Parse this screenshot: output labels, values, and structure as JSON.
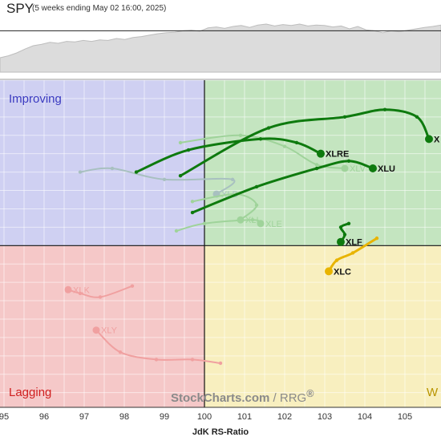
{
  "header": {
    "symbol": "SPY",
    "subtitle": "(5 weeks ending May 02 16:00, 2025)"
  },
  "watermark": {
    "brand": "StockCharts.com",
    "suffix": "/ RRG",
    "mark": "®"
  },
  "colors": {
    "improving_bg": "#cfd0f2",
    "leading_bg": "#c4e5c0",
    "lagging_bg": "#f5c8c8",
    "weakening_bg": "#f8efbf",
    "improving_text": "#3a3ac0",
    "lagging_text": "#d02020",
    "weakening_text": "#b89400",
    "green_tail": "#0e7a0e",
    "yellow_tail": "#e8b400",
    "faded_green": "#9fd39a",
    "faded_blue": "#a8c0c0",
    "faded_red": "#f0a0a0"
  },
  "chart_data": {
    "type": "scatter",
    "title": "SPY",
    "xlabel": "JdK RS-Ratio",
    "ylabel": "",
    "x_ticks": [
      "95",
      "96",
      "97",
      "98",
      "99",
      "100",
      "101",
      "102",
      "103",
      "104",
      "105"
    ],
    "xlim": [
      94.9,
      105.9
    ],
    "ylim": [
      95.6,
      104.5
    ],
    "center": [
      100,
      100
    ],
    "grid": true,
    "quadrants": {
      "top_left": "Improving",
      "bottom_left": "Lagging",
      "bottom_right": "Weakening",
      "bottom_right_shown": "W"
    },
    "benchmark_line": [
      0.3,
      0.34,
      0.4,
      0.48,
      0.55,
      0.58,
      0.62,
      0.6,
      0.64,
      0.63,
      0.66,
      0.64,
      0.67,
      0.66,
      0.7,
      0.68,
      0.72,
      0.74,
      0.77,
      0.8,
      0.82,
      0.83,
      0.86,
      0.87,
      0.85,
      0.92,
      0.94,
      0.91,
      0.95,
      0.97,
      0.93,
      0.98,
      1.0,
      0.96,
      0.99,
      0.97,
      1.0,
      0.96,
      0.98,
      0.97,
      0.94,
      0.96,
      0.9,
      0.95,
      0.88,
      0.86,
      0.82,
      0.86,
      0.84,
      0.87,
      0.9,
      0.93,
      0.95,
      0.98
    ],
    "benchmark_reference": 0.86,
    "series": [
      {
        "name": "X",
        "style": "bold",
        "color": "green",
        "points": [
          [
            99.4,
            101.9
          ],
          [
            101.6,
            103.2
          ],
          [
            103.5,
            103.5
          ],
          [
            104.5,
            103.7
          ],
          [
            105.3,
            103.5
          ],
          [
            105.6,
            102.9
          ]
        ]
      },
      {
        "name": "XLRE",
        "style": "bold",
        "color": "green",
        "points": [
          [
            98.3,
            102.0
          ],
          [
            99.6,
            102.6
          ],
          [
            101.4,
            102.9
          ],
          [
            102.3,
            102.8
          ],
          [
            102.9,
            102.5
          ]
        ]
      },
      {
        "name": "XLU",
        "style": "bold",
        "color": "green",
        "points": [
          [
            99.7,
            100.9
          ],
          [
            101.3,
            101.6
          ],
          [
            102.8,
            102.1
          ],
          [
            103.6,
            102.3
          ],
          [
            104.2,
            102.1
          ]
        ]
      },
      {
        "name": "XLF",
        "style": "bold",
        "color": "green",
        "points": [
          [
            103.6,
            100.6
          ],
          [
            103.4,
            100.5
          ],
          [
            103.5,
            100.3
          ],
          [
            103.4,
            100.1
          ]
        ]
      },
      {
        "name": "XLC",
        "style": "bold",
        "color": "yellow",
        "points": [
          [
            104.3,
            100.2
          ],
          [
            103.7,
            99.8
          ],
          [
            103.3,
            99.6
          ],
          [
            103.1,
            99.3
          ]
        ]
      },
      {
        "name": "XLV",
        "style": "faded",
        "color": "green",
        "points": [
          [
            99.4,
            102.8
          ],
          [
            100.9,
            103.0
          ],
          [
            102.0,
            102.7
          ],
          [
            102.8,
            102.2
          ],
          [
            103.5,
            102.1
          ]
        ]
      },
      {
        "name": "XLB",
        "style": "faded",
        "color": "blue",
        "points": [
          [
            96.9,
            102.0
          ],
          [
            97.7,
            102.1
          ],
          [
            99.0,
            101.8
          ],
          [
            100.7,
            101.8
          ],
          [
            100.3,
            101.4
          ]
        ]
      },
      {
        "name": "XLI",
        "style": "faded",
        "color": "green",
        "points": [
          [
            99.7,
            101.2
          ],
          [
            100.8,
            101.4
          ],
          [
            101.3,
            101.1
          ],
          [
            100.9,
            100.7
          ]
        ]
      },
      {
        "name": "XLE",
        "style": "faded",
        "color": "green",
        "points": [
          [
            99.3,
            100.4
          ],
          [
            100.0,
            100.6
          ],
          [
            101.2,
            100.7
          ],
          [
            101.4,
            100.6
          ]
        ]
      },
      {
        "name": "XLK",
        "style": "faded",
        "color": "red",
        "points": [
          [
            98.2,
            98.9
          ],
          [
            97.4,
            98.6
          ],
          [
            96.9,
            98.7
          ],
          [
            96.6,
            98.8
          ]
        ]
      },
      {
        "name": "XLY",
        "style": "faded",
        "color": "red",
        "points": [
          [
            100.4,
            96.8
          ],
          [
            99.7,
            96.9
          ],
          [
            98.8,
            96.9
          ],
          [
            97.9,
            97.1
          ],
          [
            97.3,
            97.7
          ]
        ]
      }
    ]
  }
}
